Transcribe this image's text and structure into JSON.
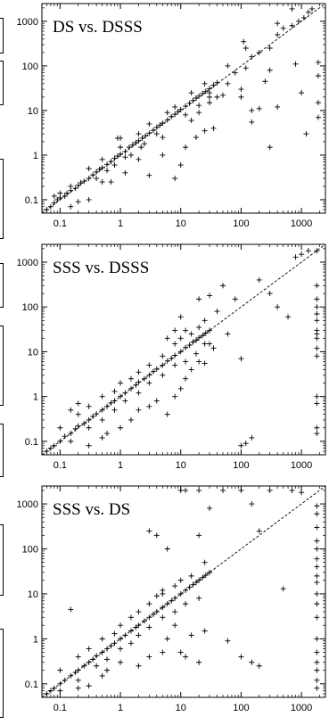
{
  "chart_data": [
    {
      "type": "scatter",
      "title": "DS vs. DSSS",
      "xscale": "log",
      "yscale": "log",
      "xlim": [
        0.05,
        2500
      ],
      "ylim": [
        0.05,
        2500
      ],
      "xticks": [
        "0.1",
        "1",
        "10",
        "100",
        "1000"
      ],
      "yticks": [
        "0.1",
        "1",
        "10",
        "100",
        "1000"
      ],
      "diagonal": "dashed y = x",
      "points": [
        [
          0.06,
          0.06
        ],
        [
          0.07,
          0.07
        ],
        [
          0.08,
          0.085
        ],
        [
          0.09,
          0.1
        ],
        [
          0.1,
          0.11
        ],
        [
          0.12,
          0.12
        ],
        [
          0.13,
          0.14
        ],
        [
          0.15,
          0.16
        ],
        [
          0.18,
          0.18
        ],
        [
          0.2,
          0.21
        ],
        [
          0.22,
          0.24
        ],
        [
          0.25,
          0.26
        ],
        [
          0.3,
          0.3
        ],
        [
          0.35,
          0.36
        ],
        [
          0.4,
          0.42
        ],
        [
          0.45,
          0.48
        ],
        [
          0.5,
          0.52
        ],
        [
          0.6,
          0.62
        ],
        [
          0.7,
          0.72
        ],
        [
          0.8,
          0.85
        ],
        [
          0.9,
          0.95
        ],
        [
          1,
          1.05
        ],
        [
          1.2,
          1.2
        ],
        [
          1.4,
          1.5
        ],
        [
          1.6,
          1.7
        ],
        [
          1.8,
          1.9
        ],
        [
          2,
          2.1
        ],
        [
          2.3,
          2.4
        ],
        [
          2.6,
          2.7
        ],
        [
          3,
          3.1
        ],
        [
          3.5,
          3.6
        ],
        [
          4,
          4.2
        ],
        [
          4.5,
          4.7
        ],
        [
          5,
          5.2
        ],
        [
          6,
          6.1
        ],
        [
          7,
          7.3
        ],
        [
          8,
          8.2
        ],
        [
          9,
          9.4
        ],
        [
          10,
          10.5
        ],
        [
          12,
          12.5
        ],
        [
          14,
          14.5
        ],
        [
          16,
          16.8
        ],
        [
          18,
          19
        ],
        [
          20,
          21
        ],
        [
          23,
          24
        ],
        [
          26,
          27
        ],
        [
          30,
          31
        ],
        [
          35,
          37
        ],
        [
          40,
          42
        ],
        [
          0.1,
          0.14
        ],
        [
          0.15,
          0.2
        ],
        [
          0.3,
          0.5
        ],
        [
          0.5,
          0.8
        ],
        [
          0.4,
          0.3
        ],
        [
          0.6,
          0.45
        ],
        [
          0.8,
          0.6
        ],
        [
          1,
          1.5
        ],
        [
          1.5,
          1
        ],
        [
          2,
          3
        ],
        [
          2.5,
          1.8
        ],
        [
          3,
          5
        ],
        [
          4,
          3
        ],
        [
          6,
          9
        ],
        [
          5,
          2.5
        ],
        [
          8,
          12
        ],
        [
          12,
          8
        ],
        [
          15,
          25
        ],
        [
          20,
          13
        ],
        [
          25,
          40
        ],
        [
          30,
          20
        ],
        [
          0.08,
          0.12
        ],
        [
          0.15,
          0.07
        ],
        [
          0.2,
          0.09
        ],
        [
          0.3,
          0.1
        ],
        [
          0.5,
          0.25
        ],
        [
          0.7,
          0.25
        ],
        [
          1.2,
          0.4
        ],
        [
          2,
          0.8
        ],
        [
          3,
          0.35
        ],
        [
          5,
          1
        ],
        [
          8,
          0.3
        ],
        [
          10,
          0.6
        ],
        [
          12,
          1.5
        ],
        [
          18,
          2.5
        ],
        [
          25,
          3.5
        ],
        [
          35,
          4
        ],
        [
          0.9,
          2.4
        ],
        [
          1,
          2.4
        ],
        [
          1.2,
          0.9
        ],
        [
          2.2,
          1.5
        ],
        [
          15,
          6
        ],
        [
          20,
          9
        ],
        [
          30,
          25
        ],
        [
          40,
          20
        ],
        [
          60,
          40
        ],
        [
          80,
          70
        ],
        [
          100,
          30
        ],
        [
          120,
          90
        ],
        [
          150,
          160
        ],
        [
          200,
          200
        ],
        [
          300,
          250
        ],
        [
          400,
          500
        ],
        [
          500,
          700
        ],
        [
          700,
          800
        ],
        [
          900,
          1000
        ],
        [
          1100,
          1200
        ],
        [
          1300,
          1600
        ],
        [
          1500,
          1900
        ],
        [
          700,
          1900
        ],
        [
          400,
          900
        ],
        [
          110,
          350
        ],
        [
          150,
          5.5
        ],
        [
          200,
          11
        ],
        [
          300,
          1.5
        ],
        [
          400,
          12
        ],
        [
          800,
          110
        ],
        [
          1000,
          25
        ],
        [
          1200,
          3
        ],
        [
          1900,
          7
        ],
        [
          1900,
          60
        ],
        [
          1900,
          15
        ],
        [
          1900,
          120
        ],
        [
          150,
          10
        ],
        [
          250,
          45
        ],
        [
          30,
          15
        ],
        [
          50,
          22
        ],
        [
          60,
          100
        ],
        [
          100,
          20
        ],
        [
          120,
          250
        ],
        [
          300,
          80
        ]
      ]
    },
    {
      "type": "scatter",
      "title": "SSS vs. DSSS",
      "xscale": "log",
      "yscale": "log",
      "xlim": [
        0.05,
        2500
      ],
      "ylim": [
        0.05,
        2500
      ],
      "xticks": [
        "0.1",
        "1",
        "10",
        "100",
        "1000"
      ],
      "yticks": [
        "0.1",
        "1",
        "10",
        "100",
        "1000"
      ],
      "diagonal": "dashed y = x",
      "points": [
        [
          0.06,
          0.06
        ],
        [
          0.07,
          0.07
        ],
        [
          0.08,
          0.08
        ],
        [
          0.1,
          0.1
        ],
        [
          0.12,
          0.13
        ],
        [
          0.15,
          0.15
        ],
        [
          0.18,
          0.19
        ],
        [
          0.2,
          0.22
        ],
        [
          0.25,
          0.25
        ],
        [
          0.3,
          0.3
        ],
        [
          0.35,
          0.36
        ],
        [
          0.4,
          0.41
        ],
        [
          0.5,
          0.5
        ],
        [
          0.6,
          0.6
        ],
        [
          0.7,
          0.72
        ],
        [
          0.8,
          0.8
        ],
        [
          1,
          1
        ],
        [
          1.2,
          1.2
        ],
        [
          1.5,
          1.5
        ],
        [
          1.8,
          1.8
        ],
        [
          2,
          2.1
        ],
        [
          2.5,
          2.5
        ],
        [
          3,
          3
        ],
        [
          3.5,
          3.6
        ],
        [
          4,
          4.1
        ],
        [
          5,
          5
        ],
        [
          6,
          6.2
        ],
        [
          7,
          7.1
        ],
        [
          8,
          8.3
        ],
        [
          10,
          10
        ],
        [
          12,
          12.4
        ],
        [
          14,
          14
        ],
        [
          16,
          16.5
        ],
        [
          18,
          18
        ],
        [
          20,
          20.5
        ],
        [
          23,
          23
        ],
        [
          26,
          26
        ],
        [
          30,
          30
        ],
        [
          0.1,
          0.2
        ],
        [
          0.2,
          0.4
        ],
        [
          0.3,
          0.6
        ],
        [
          0.5,
          1
        ],
        [
          0.8,
          1.3
        ],
        [
          1,
          2
        ],
        [
          1.5,
          2.5
        ],
        [
          2,
          3.5
        ],
        [
          3,
          5
        ],
        [
          5,
          8
        ],
        [
          8,
          15
        ],
        [
          10,
          20
        ],
        [
          15,
          25
        ],
        [
          20,
          35
        ],
        [
          0.15,
          0.1
        ],
        [
          0.3,
          0.2
        ],
        [
          0.5,
          0.3
        ],
        [
          0.8,
          0.5
        ],
        [
          1.2,
          0.8
        ],
        [
          2,
          1.2
        ],
        [
          3,
          2
        ],
        [
          5,
          3
        ],
        [
          8,
          5
        ],
        [
          12,
          6
        ],
        [
          18,
          9
        ],
        [
          25,
          15
        ],
        [
          0.15,
          0.5
        ],
        [
          0.2,
          0.7
        ],
        [
          0.3,
          0.08
        ],
        [
          0.5,
          0.12
        ],
        [
          0.6,
          0.15
        ],
        [
          1,
          0.2
        ],
        [
          1.5,
          0.3
        ],
        [
          2,
          0.5
        ],
        [
          3,
          0.6
        ],
        [
          4,
          0.8
        ],
        [
          6,
          0.4
        ],
        [
          8,
          1
        ],
        [
          10,
          1.5
        ],
        [
          12,
          2.5
        ],
        [
          15,
          4
        ],
        [
          20,
          6
        ],
        [
          25,
          5.5
        ],
        [
          30,
          15
        ],
        [
          35,
          12
        ],
        [
          10,
          60
        ],
        [
          12,
          30
        ],
        [
          6,
          20
        ],
        [
          8,
          30
        ],
        [
          20,
          150
        ],
        [
          25,
          50
        ],
        [
          30,
          180
        ],
        [
          40,
          80
        ],
        [
          50,
          300
        ],
        [
          60,
          25
        ],
        [
          80,
          150
        ],
        [
          100,
          7
        ],
        [
          100,
          0.08
        ],
        [
          120,
          0.09
        ],
        [
          150,
          0.12
        ],
        [
          200,
          400
        ],
        [
          300,
          200
        ],
        [
          400,
          100
        ],
        [
          600,
          60
        ],
        [
          800,
          1300
        ],
        [
          1000,
          1500
        ],
        [
          1300,
          1800
        ],
        [
          1800,
          1800
        ],
        [
          1800,
          300
        ],
        [
          1800,
          150
        ],
        [
          1800,
          100
        ],
        [
          1800,
          70
        ],
        [
          1800,
          50
        ],
        [
          1800,
          30
        ],
        [
          1800,
          25
        ],
        [
          1800,
          20
        ],
        [
          1800,
          12
        ],
        [
          1800,
          8
        ],
        [
          1800,
          1
        ],
        [
          1800,
          0.7
        ],
        [
          1800,
          0.2
        ],
        [
          1800,
          0.15
        ]
      ]
    },
    {
      "type": "scatter",
      "title": "SSS vs. DS",
      "xscale": "log",
      "yscale": "log",
      "xlim": [
        0.05,
        2500
      ],
      "ylim": [
        0.05,
        2500
      ],
      "xticks": [
        "0.1",
        "1",
        "10",
        "100",
        "1000"
      ],
      "yticks": [
        "0.1",
        "1",
        "10",
        "100",
        "1000"
      ],
      "diagonal": "dashed y = x",
      "points": [
        [
          0.06,
          0.06
        ],
        [
          0.07,
          0.07
        ],
        [
          0.08,
          0.08
        ],
        [
          0.1,
          0.1
        ],
        [
          0.12,
          0.12
        ],
        [
          0.15,
          0.15
        ],
        [
          0.18,
          0.18
        ],
        [
          0.2,
          0.2
        ],
        [
          0.25,
          0.25
        ],
        [
          0.3,
          0.3
        ],
        [
          0.35,
          0.35
        ],
        [
          0.4,
          0.42
        ],
        [
          0.5,
          0.5
        ],
        [
          0.6,
          0.6
        ],
        [
          0.7,
          0.7
        ],
        [
          0.8,
          0.8
        ],
        [
          1,
          1
        ],
        [
          1.2,
          1.2
        ],
        [
          1.5,
          1.5
        ],
        [
          1.8,
          1.8
        ],
        [
          2,
          2
        ],
        [
          2.5,
          2.5
        ],
        [
          3,
          3
        ],
        [
          3.5,
          3.5
        ],
        [
          4,
          4
        ],
        [
          5,
          5
        ],
        [
          6,
          6
        ],
        [
          7,
          7
        ],
        [
          8,
          8
        ],
        [
          10,
          10
        ],
        [
          12,
          12
        ],
        [
          14,
          14
        ],
        [
          16,
          16
        ],
        [
          18,
          18
        ],
        [
          20,
          20
        ],
        [
          23,
          23
        ],
        [
          26,
          26
        ],
        [
          30,
          30
        ],
        [
          0.1,
          0.2
        ],
        [
          0.2,
          0.4
        ],
        [
          0.3,
          0.6
        ],
        [
          0.5,
          1
        ],
        [
          0.8,
          1.3
        ],
        [
          1,
          2
        ],
        [
          1.5,
          3
        ],
        [
          2,
          4
        ],
        [
          3,
          6
        ],
        [
          4,
          9
        ],
        [
          5,
          12
        ],
        [
          8,
          15
        ],
        [
          10,
          20
        ],
        [
          15,
          25
        ],
        [
          0.2,
          0.12
        ],
        [
          0.4,
          0.25
        ],
        [
          0.6,
          0.35
        ],
        [
          1,
          0.6
        ],
        [
          1.5,
          0.8
        ],
        [
          2,
          1.2
        ],
        [
          3,
          1.8
        ],
        [
          5,
          3
        ],
        [
          8,
          4
        ],
        [
          12,
          6
        ],
        [
          20,
          8
        ],
        [
          0.1,
          0.07
        ],
        [
          0.2,
          0.08
        ],
        [
          0.3,
          0.09
        ],
        [
          0.5,
          0.15
        ],
        [
          0.6,
          0.2
        ],
        [
          1,
          0.3
        ],
        [
          2,
          0.25
        ],
        [
          3,
          0.4
        ],
        [
          5,
          0.5
        ],
        [
          6,
          1
        ],
        [
          0.15,
          4.5
        ],
        [
          8,
          2
        ],
        [
          10,
          0.5
        ],
        [
          12,
          0.4
        ],
        [
          15,
          1.2
        ],
        [
          20,
          0.3
        ],
        [
          25,
          1.5
        ],
        [
          3,
          250
        ],
        [
          4,
          200
        ],
        [
          5,
          10
        ],
        [
          6,
          100
        ],
        [
          10,
          2000
        ],
        [
          12,
          2000
        ],
        [
          20,
          2000
        ],
        [
          20,
          200
        ],
        [
          30,
          800
        ],
        [
          25,
          50
        ],
        [
          50,
          2000
        ],
        [
          100,
          2000
        ],
        [
          150,
          1000
        ],
        [
          200,
          250
        ],
        [
          60,
          0.9
        ],
        [
          100,
          0.4
        ],
        [
          150,
          0.3
        ],
        [
          200,
          0.25
        ],
        [
          300,
          2000
        ],
        [
          500,
          13
        ],
        [
          700,
          2000
        ],
        [
          1000,
          1800
        ],
        [
          1800,
          900
        ],
        [
          1800,
          600
        ],
        [
          1800,
          300
        ],
        [
          1800,
          150
        ],
        [
          1800,
          100
        ],
        [
          1800,
          60
        ],
        [
          1800,
          40
        ],
        [
          1800,
          25
        ],
        [
          1800,
          18
        ],
        [
          1800,
          10
        ],
        [
          1800,
          6
        ],
        [
          1800,
          3
        ],
        [
          1800,
          1
        ],
        [
          1800,
          0.5
        ],
        [
          1800,
          0.3
        ],
        [
          1800,
          0.2
        ],
        [
          1800,
          0.12
        ],
        [
          1800,
          0.08
        ]
      ]
    }
  ]
}
